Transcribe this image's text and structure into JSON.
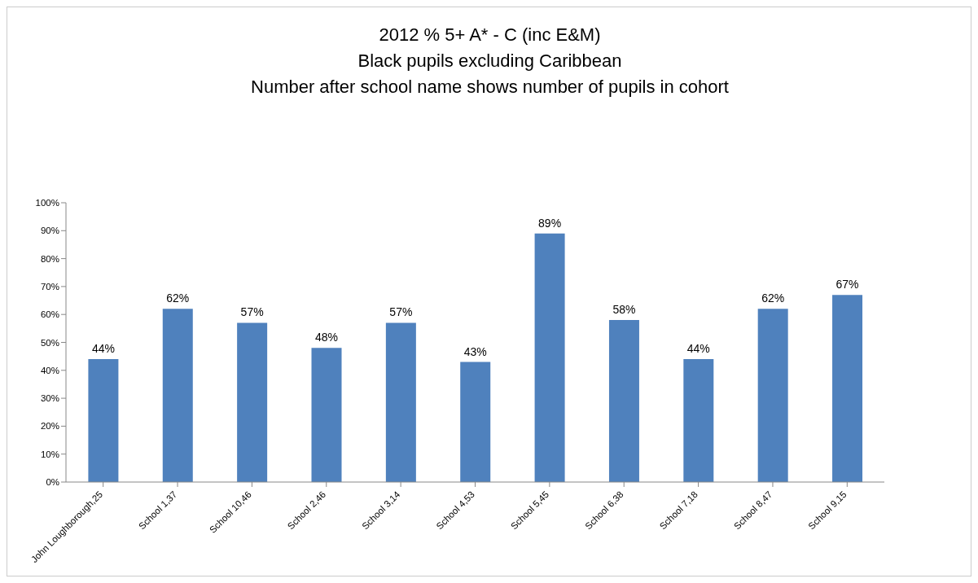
{
  "chart_data": {
    "type": "bar",
    "title": "2012 % 5+ A* - C (inc E&M)\nBlack pupils excluding Caribbean\nNumber after school name shows number of pupils in cohort",
    "categories": [
      "John Loughborough,25",
      "School 1,37",
      "School 10,46",
      "School 2,46",
      "School 3,14",
      "School 4,53",
      "School 5,45",
      "School 6,38",
      "School 7,18",
      "School 8,47",
      "School 9,15"
    ],
    "values": [
      44,
      62,
      57,
      48,
      57,
      43,
      89,
      58,
      44,
      62,
      67
    ],
    "value_labels": [
      "44%",
      "62%",
      "57%",
      "48%",
      "57%",
      "43%",
      "89%",
      "58%",
      "44%",
      "62%",
      "67%"
    ],
    "color": "#4f81bd",
    "ylim": [
      0,
      100
    ],
    "yticks": [
      {
        "value": 0,
        "label": "0%"
      },
      {
        "value": 10,
        "label": "10%"
      },
      {
        "value": 20,
        "label": "20%"
      },
      {
        "value": 30,
        "label": "30%"
      },
      {
        "value": 40,
        "label": "40%"
      },
      {
        "value": 50,
        "label": "50%"
      },
      {
        "value": 60,
        "label": "60%"
      },
      {
        "value": 70,
        "label": "70%"
      },
      {
        "value": 80,
        "label": "80%"
      },
      {
        "value": 90,
        "label": "90%"
      },
      {
        "value": 100,
        "label": "100%"
      }
    ],
    "grid": false,
    "legend": false
  }
}
